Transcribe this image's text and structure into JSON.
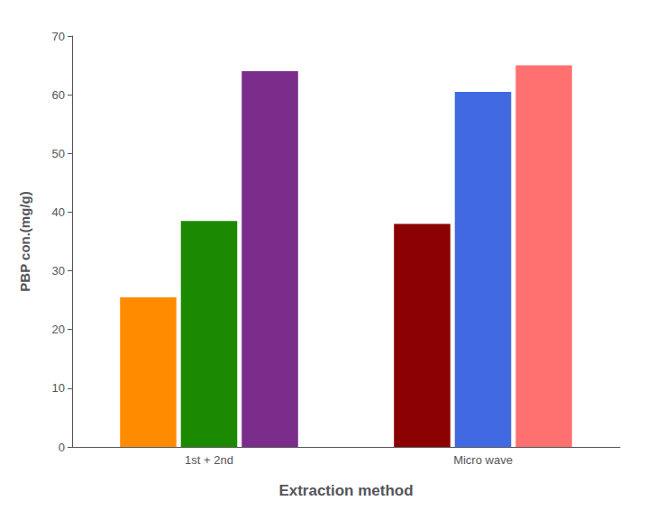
{
  "chart_data": {
    "type": "bar",
    "categories": [
      "1st + 2nd",
      "Micro wave"
    ],
    "series": [
      {
        "values": [
          25.5,
          38.0
        ],
        "colors": [
          "#FF8C00",
          "#8B0000"
        ]
      },
      {
        "values": [
          38.5,
          60.5
        ],
        "colors": [
          "#1B8A00",
          "#4169E1"
        ]
      },
      {
        "values": [
          64.0,
          65.0
        ],
        "colors": [
          "#7B2D8B",
          "#FF7070"
        ]
      }
    ],
    "xlabel": "Extraction method",
    "ylabel": "PBP con.(mg/g)",
    "ylim": [
      0,
      70
    ],
    "yticks": [
      0,
      10,
      20,
      30,
      40,
      50,
      60,
      70
    ],
    "grid": false
  }
}
